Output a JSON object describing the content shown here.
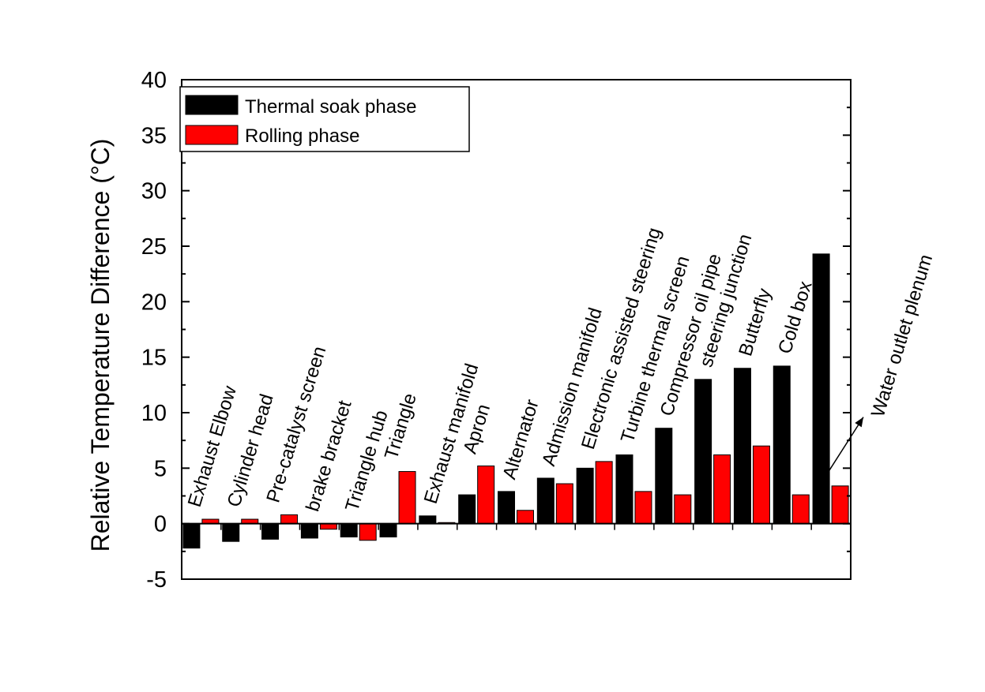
{
  "chart_data": {
    "type": "bar",
    "ylabel": "Relative Temperature Difference (°C)",
    "xlabel": "",
    "ylim": [
      -5,
      40
    ],
    "yticks": [
      -5,
      0,
      5,
      10,
      15,
      20,
      25,
      30,
      35,
      40
    ],
    "grid": false,
    "legend_position": "top-left",
    "categories": [
      "Exhaust Elbow",
      "Cylinder head",
      "Pre-catalyst screen",
      "brake bracket",
      "Triangle hub",
      "Triangle",
      "Exhaust manifold",
      "Apron",
      "Alternator",
      "Admission manifold",
      "Electronic assisted steering",
      "Turbine thermal screen",
      "Compressor oil pipe",
      "steering junction",
      "Butterfly",
      "Cold box",
      "Water outlet plenum"
    ],
    "series": [
      {
        "name": "Thermal soak phase",
        "color": "#000000",
        "values": [
          -2.2,
          -1.6,
          -1.4,
          -1.3,
          -1.2,
          -1.2,
          0.7,
          2.6,
          2.9,
          4.1,
          5.0,
          6.2,
          8.6,
          13.0,
          14.0,
          14.2,
          24.3
        ]
      },
      {
        "name": "Rolling phase",
        "color": "#ff0000",
        "values": [
          0.4,
          0.4,
          0.8,
          -0.5,
          -1.5,
          4.7,
          0.1,
          5.2,
          1.2,
          3.6,
          5.6,
          2.9,
          2.6,
          6.2,
          7.0,
          2.6,
          3.4
        ]
      }
    ],
    "annotations": [
      {
        "text": "Water outlet plenum",
        "target": "Water outlet plenum",
        "type": "arrow"
      }
    ]
  }
}
